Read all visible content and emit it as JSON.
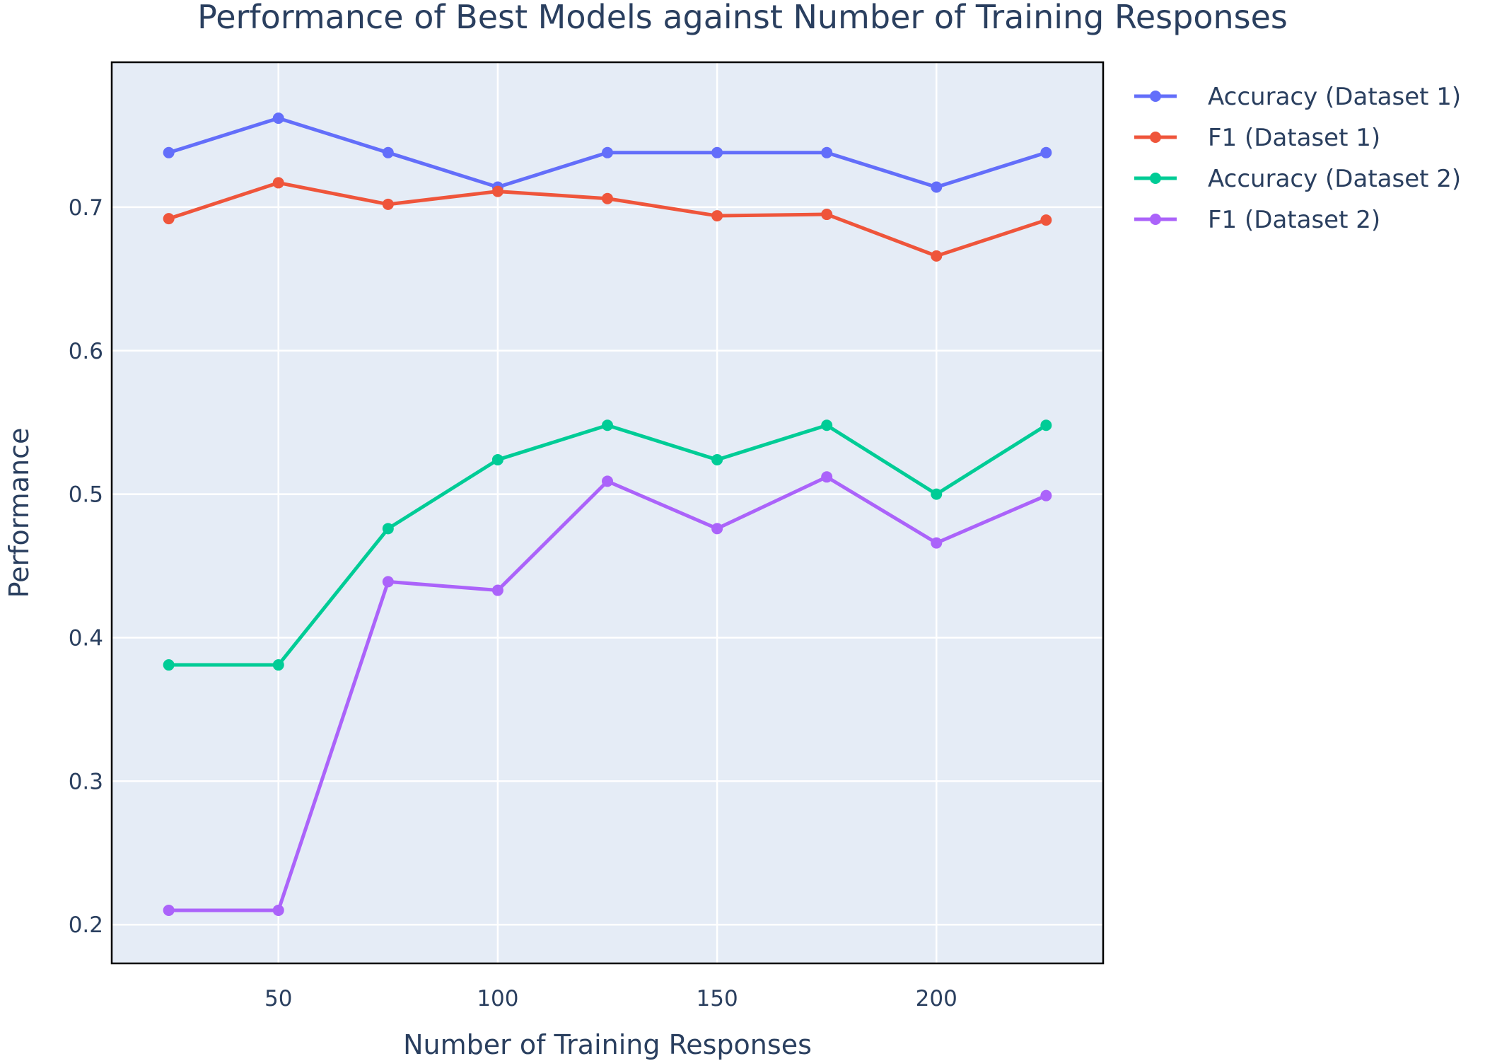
{
  "chart_data": {
    "type": "line",
    "title": "Performance of Best Models against Number of Training Responses",
    "xlabel": "Number of Training Responses",
    "ylabel": "Performance",
    "x": [
      25,
      50,
      75,
      100,
      125,
      150,
      175,
      200,
      225
    ],
    "xlim": [
      12,
      238
    ],
    "ylim": [
      0.173,
      0.801
    ],
    "xticks": [
      50,
      100,
      150,
      200
    ],
    "yticks": [
      0.2,
      0.3,
      0.4,
      0.5,
      0.6,
      0.7
    ],
    "xtick_labels": [
      "50",
      "100",
      "150",
      "200"
    ],
    "ytick_labels": [
      "0.2",
      "0.3",
      "0.4",
      "0.5",
      "0.6",
      "0.7"
    ],
    "grid": true,
    "legend_position": "right-top",
    "plot_background": "#e5ecf6",
    "series": [
      {
        "name": "Accuracy (Dataset 1)",
        "color": "#636efa",
        "values": [
          0.738,
          0.762,
          0.738,
          0.714,
          0.738,
          0.738,
          0.738,
          0.714,
          0.738
        ]
      },
      {
        "name": "F1 (Dataset 1)",
        "color": "#ef553b",
        "values": [
          0.692,
          0.717,
          0.702,
          0.711,
          0.706,
          0.694,
          0.695,
          0.666,
          0.691
        ]
      },
      {
        "name": "Accuracy (Dataset 2)",
        "color": "#00cc96",
        "values": [
          0.381,
          0.381,
          0.476,
          0.524,
          0.548,
          0.524,
          0.548,
          0.5,
          0.548
        ]
      },
      {
        "name": "F1 (Dataset 2)",
        "color": "#ab63fa",
        "values": [
          0.21,
          0.21,
          0.439,
          0.433,
          0.509,
          0.476,
          0.512,
          0.466,
          0.499
        ]
      }
    ]
  }
}
